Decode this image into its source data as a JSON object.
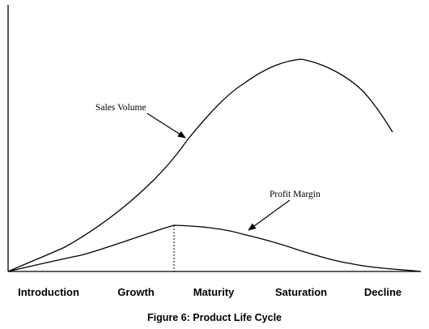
{
  "figure": {
    "caption": "Figure 6: Product Life Cycle"
  },
  "stages": [
    {
      "label": "Introduction"
    },
    {
      "label": "Growth"
    },
    {
      "label": "Maturity"
    },
    {
      "label": "Saturation"
    },
    {
      "label": "Decline"
    }
  ],
  "curves": {
    "sales_volume": {
      "label": "Sales Volume"
    },
    "profit_margin": {
      "label": "Profit Margin"
    }
  },
  "colors": {
    "line": "#000000",
    "background": "#ffffff"
  }
}
